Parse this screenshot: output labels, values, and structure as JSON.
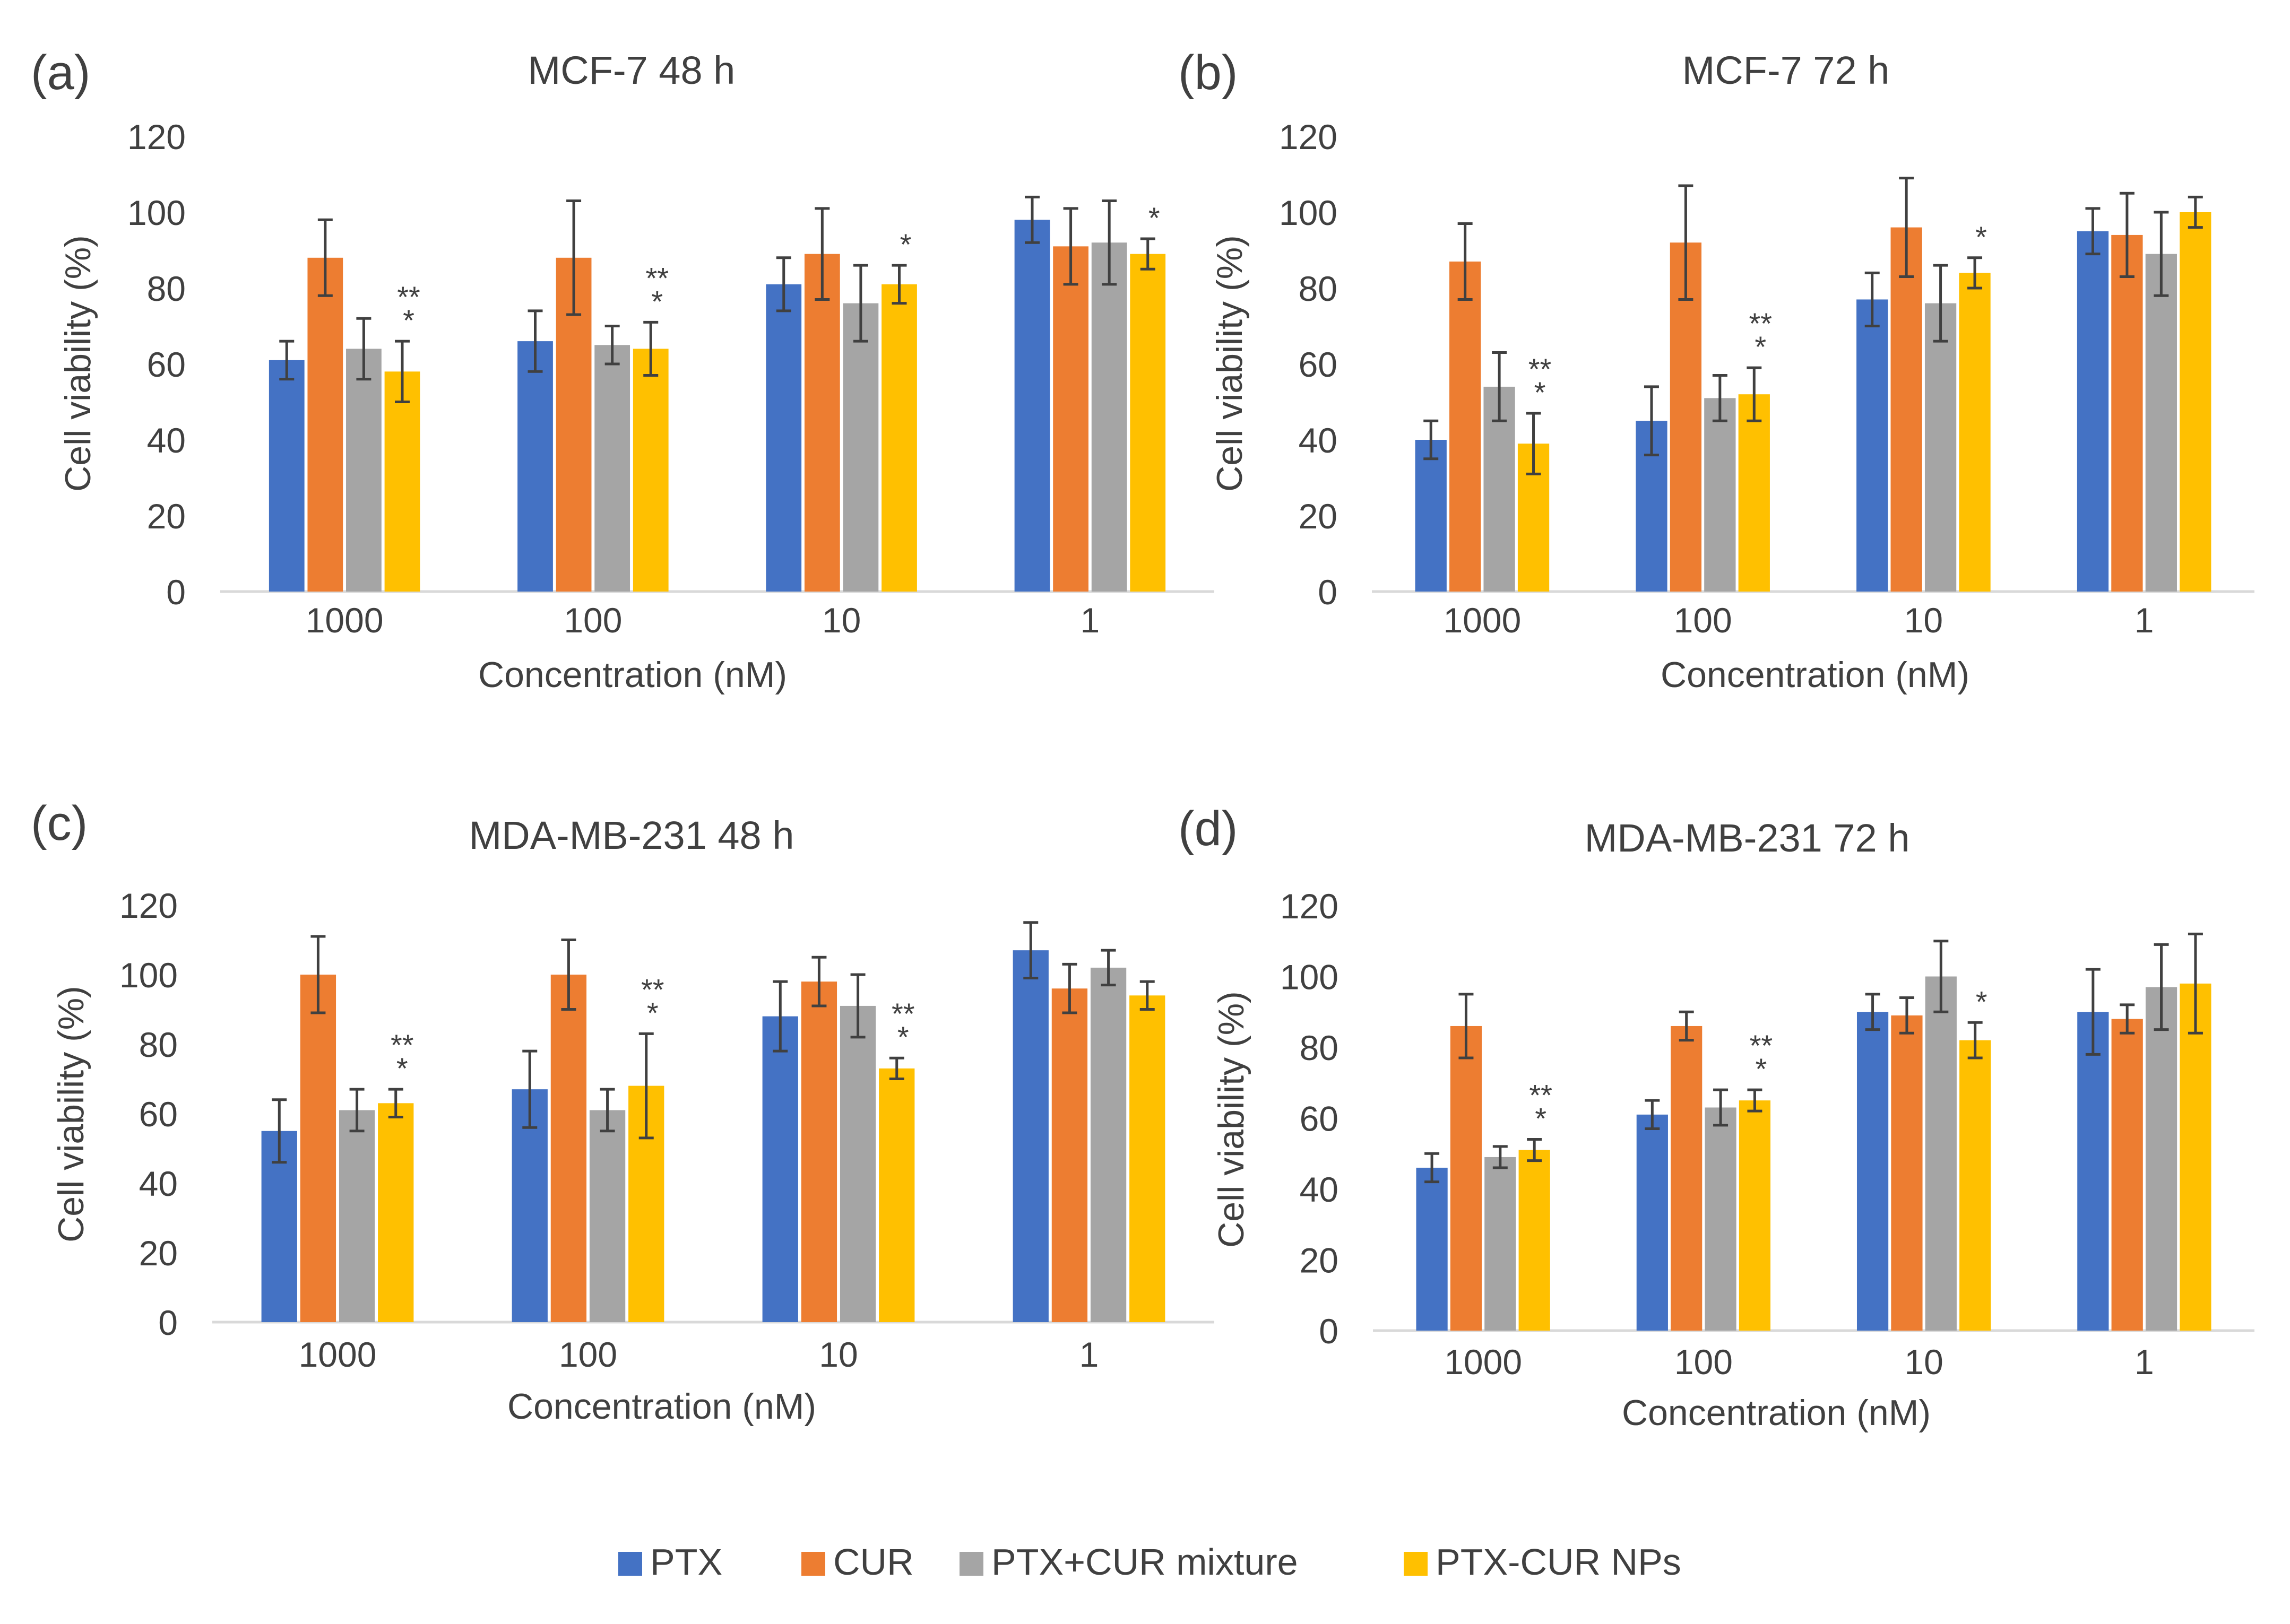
{
  "colors": {
    "PTX": "#4472C4",
    "CUR": "#ED7D31",
    "PTX+CUR mixture": "#A5A5A5",
    "PTX-CUR NPs": "#FFC000",
    "axis": "#D9D9D9",
    "errorbar": "#404040"
  },
  "legend": {
    "items": [
      {
        "name": "PTX",
        "color": "#4472C4"
      },
      {
        "name": "CUR",
        "color": "#ED7D31"
      },
      {
        "name": "PTX+CUR mixture",
        "color": "#A5A5A5"
      },
      {
        "name": "PTX-CUR NPs",
        "color": "#FFC000"
      }
    ]
  },
  "chart_data": [
    {
      "panel_label": "(a)",
      "type": "bar",
      "title": "MCF-7 48 h",
      "xlabel": "Concentration (nM)",
      "ylabel": "Cell viability (%)",
      "ylim": [
        0,
        120
      ],
      "yticks": [
        "0",
        "20",
        "40",
        "60",
        "80",
        "100",
        "120"
      ],
      "grid": false,
      "categories": [
        "1000",
        "100",
        "10",
        "1"
      ],
      "series": [
        {
          "name": "PTX",
          "values": [
            61,
            66,
            81,
            98
          ],
          "errors": [
            5,
            8,
            7,
            6
          ]
        },
        {
          "name": "CUR",
          "values": [
            88,
            88,
            89,
            91
          ],
          "errors": [
            10,
            15,
            12,
            10
          ]
        },
        {
          "name": "PTX+CUR mixture",
          "values": [
            64,
            65,
            76,
            92
          ],
          "errors": [
            8,
            5,
            10,
            11
          ]
        },
        {
          "name": "PTX-CUR NPs",
          "values": [
            58,
            64,
            81,
            89
          ],
          "errors": [
            8,
            7,
            5,
            4
          ]
        }
      ],
      "annotations": [
        "**\n*",
        "**\n*",
        "*",
        "*"
      ]
    },
    {
      "panel_label": "(b)",
      "type": "bar",
      "title": "MCF-7 72 h",
      "xlabel": "Concentration (nM)",
      "ylabel": "Cell viability (%)",
      "ylim": [
        0,
        120
      ],
      "yticks": [
        "0",
        "20",
        "40",
        "60",
        "80",
        "100",
        "120"
      ],
      "grid": false,
      "categories": [
        "1000",
        "100",
        "10",
        "1"
      ],
      "series": [
        {
          "name": "PTX",
          "values": [
            40,
            45,
            77,
            95
          ],
          "errors": [
            5,
            9,
            7,
            6
          ]
        },
        {
          "name": "CUR",
          "values": [
            87,
            92,
            96,
            94
          ],
          "errors": [
            10,
            15,
            13,
            11
          ]
        },
        {
          "name": "PTX+CUR mixture",
          "values": [
            54,
            51,
            76,
            89
          ],
          "errors": [
            9,
            6,
            10,
            11
          ]
        },
        {
          "name": "PTX-CUR NPs",
          "values": [
            39,
            52,
            84,
            100
          ],
          "errors": [
            8,
            7,
            4,
            4
          ]
        }
      ],
      "annotations": [
        "**\n*",
        "**\n*",
        "*",
        ""
      ]
    },
    {
      "panel_label": "(c)",
      "type": "bar",
      "title": "MDA-MB-231 48 h",
      "xlabel": "Concentration (nM)",
      "ylabel": "Cell viability (%)",
      "ylim": [
        0,
        120
      ],
      "yticks": [
        "0",
        "20",
        "40",
        "60",
        "80",
        "100",
        "120"
      ],
      "grid": false,
      "categories": [
        "1000",
        "100",
        "10",
        "1"
      ],
      "series": [
        {
          "name": "PTX",
          "values": [
            55,
            67,
            88,
            107
          ],
          "errors": [
            9,
            11,
            10,
            8
          ]
        },
        {
          "name": "CUR",
          "values": [
            100,
            100,
            98,
            96
          ],
          "errors": [
            11,
            10,
            7,
            7
          ]
        },
        {
          "name": "PTX+CUR mixture",
          "values": [
            61,
            61,
            91,
            102
          ],
          "errors": [
            6,
            6,
            9,
            5
          ]
        },
        {
          "name": "PTX-CUR NPs",
          "values": [
            63,
            68,
            73,
            94
          ],
          "errors": [
            4,
            15,
            3,
            4
          ]
        }
      ],
      "annotations": [
        "**\n*",
        "**\n*",
        "**\n*",
        ""
      ]
    },
    {
      "panel_label": "(d)",
      "type": "bar",
      "title": "MDA-MB-231 72 h",
      "xlabel": "Concentration (nM)",
      "ylabel": "Cell viability (%)",
      "ylim": [
        0,
        120
      ],
      "yticks": [
        "0",
        "20",
        "40",
        "60",
        "80",
        "100",
        "120"
      ],
      "grid": false,
      "categories": [
        "1000",
        "100",
        "10",
        "1"
      ],
      "series": [
        {
          "name": "PTX",
          "values": [
            46,
            61,
            90,
            90
          ],
          "errors": [
            4,
            4,
            5,
            12
          ]
        },
        {
          "name": "CUR",
          "values": [
            86,
            86,
            89,
            88
          ],
          "errors": [
            9,
            4,
            5,
            4
          ]
        },
        {
          "name": "PTX+CUR mixture",
          "values": [
            49,
            63,
            100,
            97
          ],
          "errors": [
            3,
            5,
            10,
            12
          ]
        },
        {
          "name": "PTX-CUR NPs",
          "values": [
            51,
            65,
            82,
            98
          ],
          "errors": [
            3,
            3,
            5,
            14
          ]
        }
      ],
      "annotations": [
        "**\n*",
        "**\n*",
        "*",
        ""
      ]
    }
  ]
}
